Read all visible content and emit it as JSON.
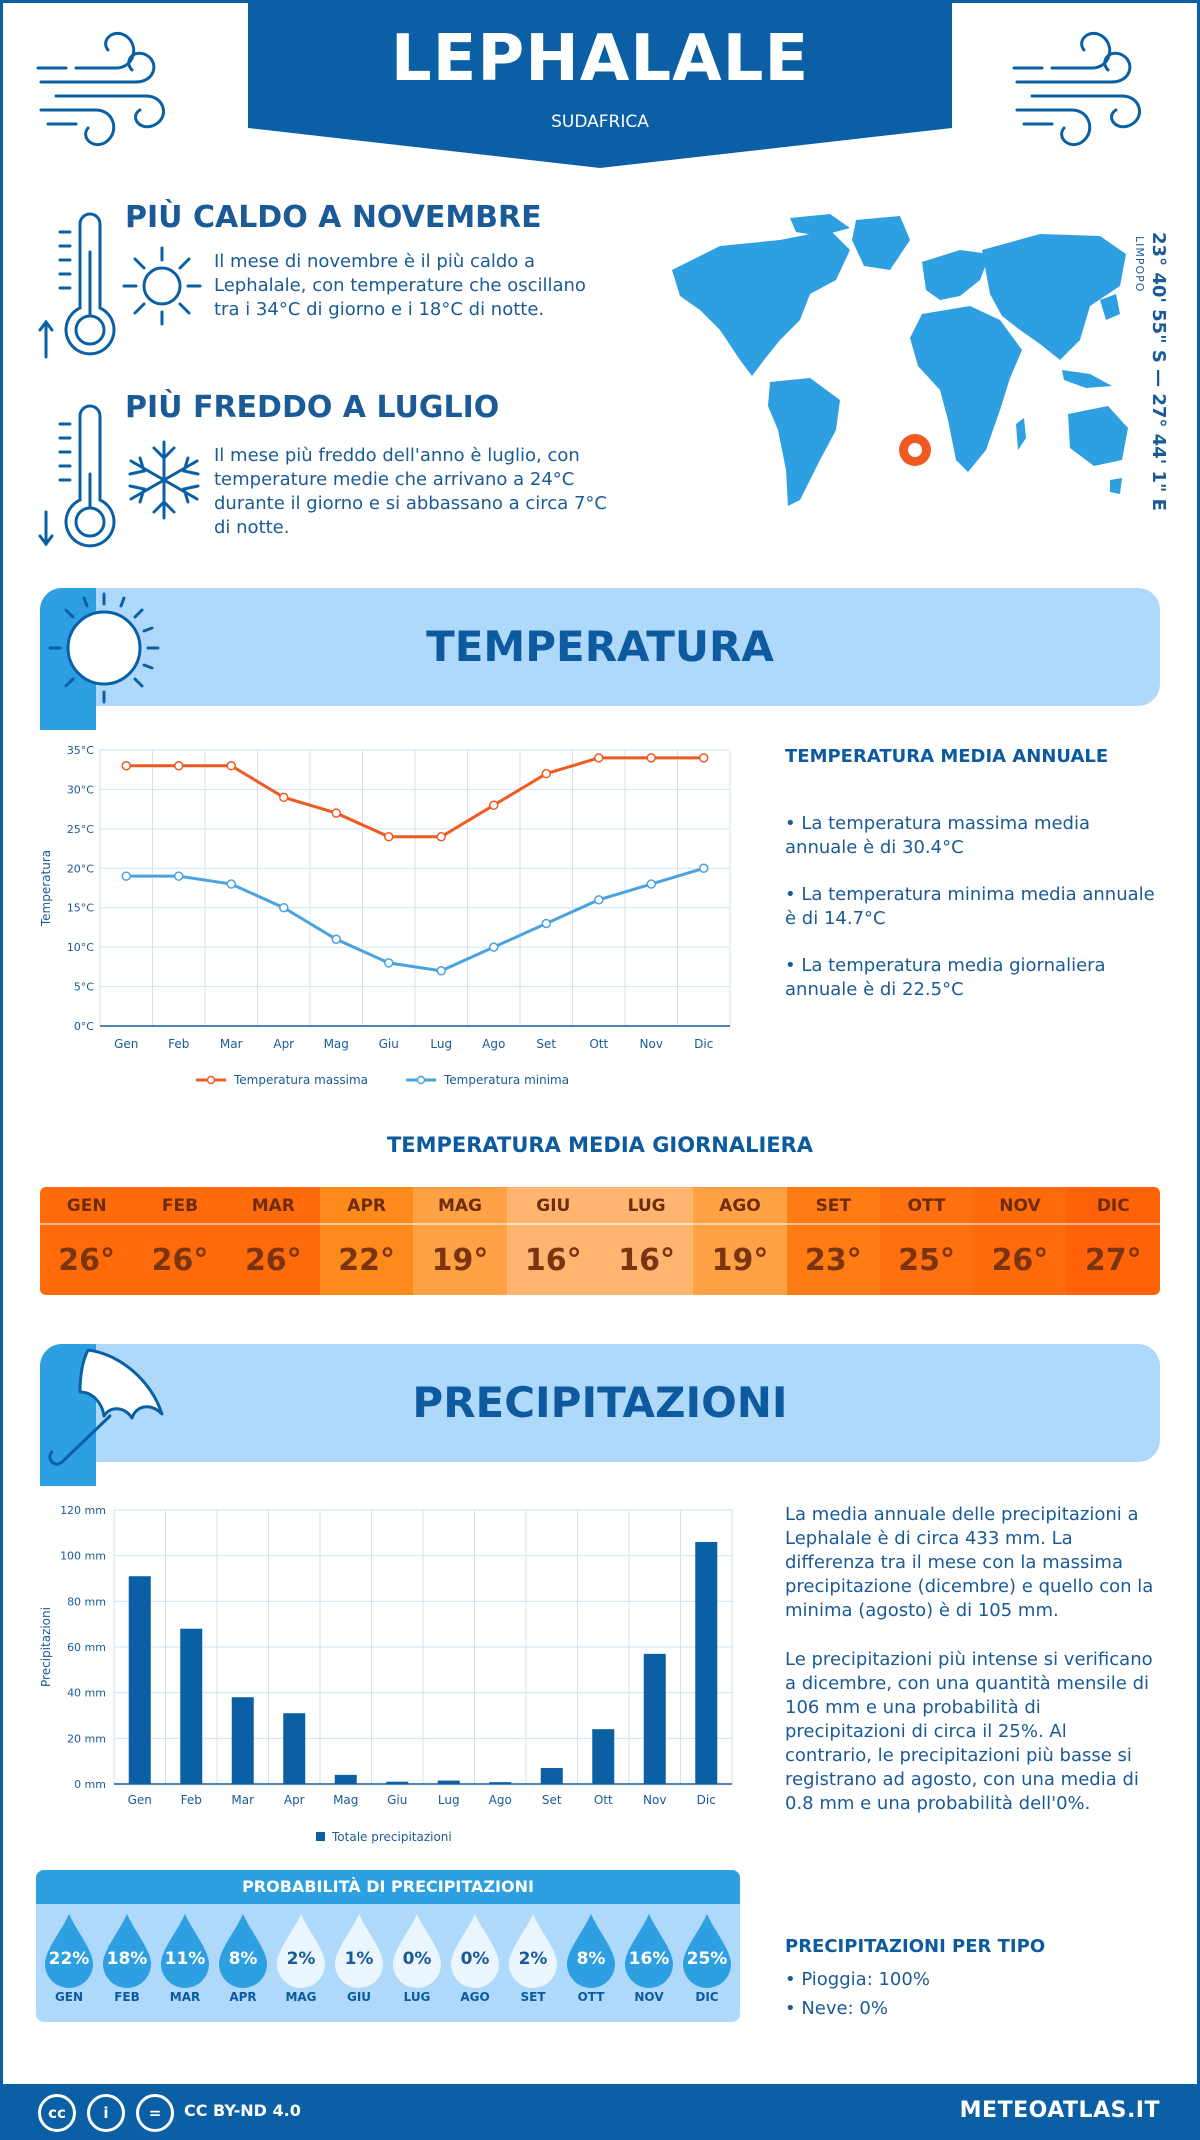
{
  "header": {
    "city": "LEPHALALE",
    "country": "SUDAFRICA"
  },
  "hot": {
    "title": "PIÙ CALDO A NOVEMBRE",
    "text": "Il mese di novembre è il più caldo a Lephalale, con temperature che oscillano tra i 34°C di giorno e i 18°C di notte."
  },
  "cold": {
    "title": "PIÙ FREDDO A LUGLIO",
    "text": "Il mese più freddo dell'anno è luglio, con temperature medie che arrivano a 24°C durante il giorno e si abbassano a circa 7°C di notte."
  },
  "location": {
    "coords": "23° 40' 55\" S — 27° 44' 1\" E",
    "region": "LIMPOPO"
  },
  "temperature_section": {
    "title": "TEMPERATURA",
    "info_title": "TEMPERATURA MEDIA ANNUALE",
    "bullets": [
      "• La temperatura massima media annuale è di 30.4°C",
      "• La temperatura minima media annuale è di 14.7°C",
      "• La temperatura media giornaliera annuale è di 22.5°C"
    ],
    "daily_title": "TEMPERATURA MEDIA GIORNALIERA",
    "daily": [
      {
        "month": "GEN",
        "value": "26°",
        "color": "#ff6a0a"
      },
      {
        "month": "FEB",
        "value": "26°",
        "color": "#ff6a0a"
      },
      {
        "month": "MAR",
        "value": "26°",
        "color": "#ff6a0a"
      },
      {
        "month": "APR",
        "value": "22°",
        "color": "#ff8a1c"
      },
      {
        "month": "MAG",
        "value": "19°",
        "color": "#ffa245"
      },
      {
        "month": "GIU",
        "value": "16°",
        "color": "#ffb570"
      },
      {
        "month": "LUG",
        "value": "16°",
        "color": "#ffb570"
      },
      {
        "month": "AGO",
        "value": "19°",
        "color": "#ffa245"
      },
      {
        "month": "SET",
        "value": "23°",
        "color": "#ff7c12"
      },
      {
        "month": "OTT",
        "value": "25°",
        "color": "#ff7010"
      },
      {
        "month": "NOV",
        "value": "26°",
        "color": "#ff6a0a"
      },
      {
        "month": "DIC",
        "value": "27°",
        "color": "#ff6208"
      }
    ]
  },
  "precip_section": {
    "title": "PRECIPITAZIONI",
    "p1": "La media annuale delle precipitazioni a Lephalale è di circa 433 mm. La differenza tra il mese con la massima precipitazione (dicembre) e quello con la minima (agosto) è di 105 mm.",
    "p2": "Le precipitazioni più intense si verificano a dicembre, con una quantità mensile di 106 mm e una probabilità di precipitazioni di circa il 25%. Al contrario, le precipitazioni più basse si registrano ad agosto, con una media di 0.8 mm e una probabilità dell'0%.",
    "prob_title": "PROBABILITÀ DI PRECIPITAZIONI",
    "prob": [
      {
        "month": "GEN",
        "value": "22%"
      },
      {
        "month": "FEB",
        "value": "18%"
      },
      {
        "month": "MAR",
        "value": "11%"
      },
      {
        "month": "APR",
        "value": "8%"
      },
      {
        "month": "MAG",
        "value": "2%"
      },
      {
        "month": "GIU",
        "value": "1%"
      },
      {
        "month": "LUG",
        "value": "0%"
      },
      {
        "month": "AGO",
        "value": "0%"
      },
      {
        "month": "SET",
        "value": "2%"
      },
      {
        "month": "OTT",
        "value": "8%"
      },
      {
        "month": "NOV",
        "value": "16%"
      },
      {
        "month": "DIC",
        "value": "25%"
      }
    ],
    "type_title": "PRECIPITAZIONI PER TIPO",
    "type_rain": "• Pioggia: 100%",
    "type_snow": "• Neve: 0%"
  },
  "footer": {
    "license": "CC BY-ND 4.0",
    "brand": "METEOATLAS.IT"
  },
  "colors": {
    "primary": "#0b5fa4",
    "light": "#aed9fb",
    "max_line": "#f05a22",
    "min_line": "#4aa3df",
    "bar": "#0b5fa4"
  },
  "chart_data": [
    {
      "type": "line",
      "categories": [
        "Gen",
        "Feb",
        "Mar",
        "Apr",
        "Mag",
        "Giu",
        "Lug",
        "Ago",
        "Set",
        "Ott",
        "Nov",
        "Dic"
      ],
      "series": [
        {
          "name": "Temperatura massima",
          "values": [
            33,
            33,
            33,
            29,
            27,
            24,
            24,
            28,
            32,
            34,
            34,
            34
          ]
        },
        {
          "name": "Temperatura minima",
          "values": [
            19,
            19,
            18,
            15,
            11,
            8,
            7,
            10,
            13,
            16,
            18,
            20
          ]
        }
      ],
      "ylabel": "Temperatura",
      "yticks": [
        "0°C",
        "5°C",
        "10°C",
        "15°C",
        "20°C",
        "25°C",
        "30°C",
        "35°C"
      ],
      "ylim": [
        0,
        35
      ],
      "grid": true,
      "legend": "bottom"
    },
    {
      "type": "bar",
      "categories": [
        "Gen",
        "Feb",
        "Mar",
        "Apr",
        "Mag",
        "Giu",
        "Lug",
        "Ago",
        "Set",
        "Ott",
        "Nov",
        "Dic"
      ],
      "series": [
        {
          "name": "Totale precipitazioni",
          "values": [
            91,
            68,
            38,
            31,
            4,
            1,
            1.5,
            0.8,
            7,
            24,
            57,
            106
          ]
        }
      ],
      "ylabel": "Precipitazioni",
      "yticks": [
        "0 mm",
        "20 mm",
        "40 mm",
        "60 mm",
        "80 mm",
        "100 mm",
        "120 mm"
      ],
      "ylim": [
        0,
        120
      ],
      "grid": true,
      "legend": "bottom"
    }
  ]
}
